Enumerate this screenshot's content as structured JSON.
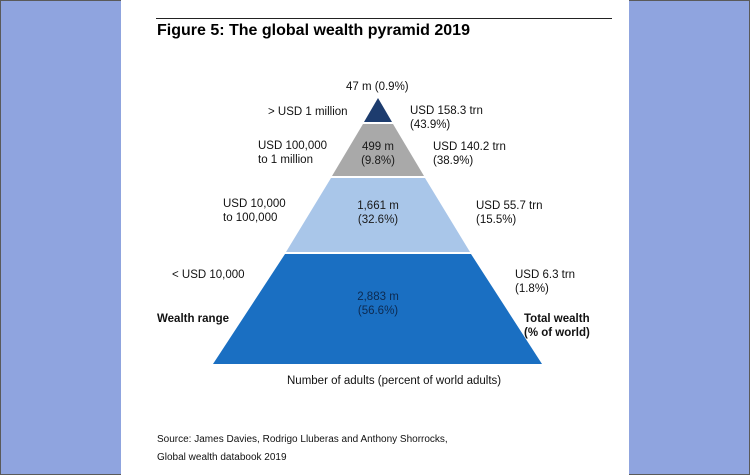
{
  "figure": {
    "title": "Figure 5: The global wealth pyramid 2019",
    "top_count": "47 m (0.9%)",
    "wealth_range_heading": "Wealth range",
    "total_wealth_heading_line1": "Total wealth",
    "total_wealth_heading_line2": "(% of world)",
    "axis_caption": "Number of adults (percent of world adults)",
    "source_line1": "Source: James Davies, Rodrigo Lluberas and Anthony Shorrocks,",
    "source_line2": "Global wealth databook 2019"
  },
  "tiers": [
    {
      "range_line1": ">  USD 1 million",
      "range_line2": "",
      "adults_line1": "",
      "adults_line2": "",
      "wealth_line1": "USD 158.3 trn",
      "wealth_line2": "(43.9%)",
      "adults_millions": 47,
      "adults_pct": 0.9,
      "wealth_trn": 158.3,
      "wealth_pct": 43.9,
      "color": "#1d3c6e"
    },
    {
      "range_line1": "USD 100,000",
      "range_line2": "to 1 million",
      "adults_line1": "499 m",
      "adults_line2": "(9.8%)",
      "wealth_line1": "USD 140.2 trn",
      "wealth_line2": "(38.9%)",
      "adults_millions": 499,
      "adults_pct": 9.8,
      "wealth_trn": 140.2,
      "wealth_pct": 38.9,
      "color": "#a9a9a9"
    },
    {
      "range_line1": "USD 10,000",
      "range_line2": "to 100,000",
      "adults_line1": "1,661 m",
      "adults_line2": "(32.6%)",
      "wealth_line1": "USD 55.7 trn",
      "wealth_line2": "(15.5%)",
      "adults_millions": 1661,
      "adults_pct": 32.6,
      "wealth_trn": 55.7,
      "wealth_pct": 15.5,
      "color": "#a9c6e9"
    },
    {
      "range_line1": "<  USD 10,000",
      "range_line2": "",
      "adults_line1": "2,883 m",
      "adults_line2": "(56.6%)",
      "wealth_line1": "USD 6.3 trn",
      "wealth_line2": "(1.8%)",
      "adults_millions": 2883,
      "adults_pct": 56.6,
      "wealth_trn": 6.3,
      "wealth_pct": 1.8,
      "color": "#1a6fc2"
    }
  ]
}
